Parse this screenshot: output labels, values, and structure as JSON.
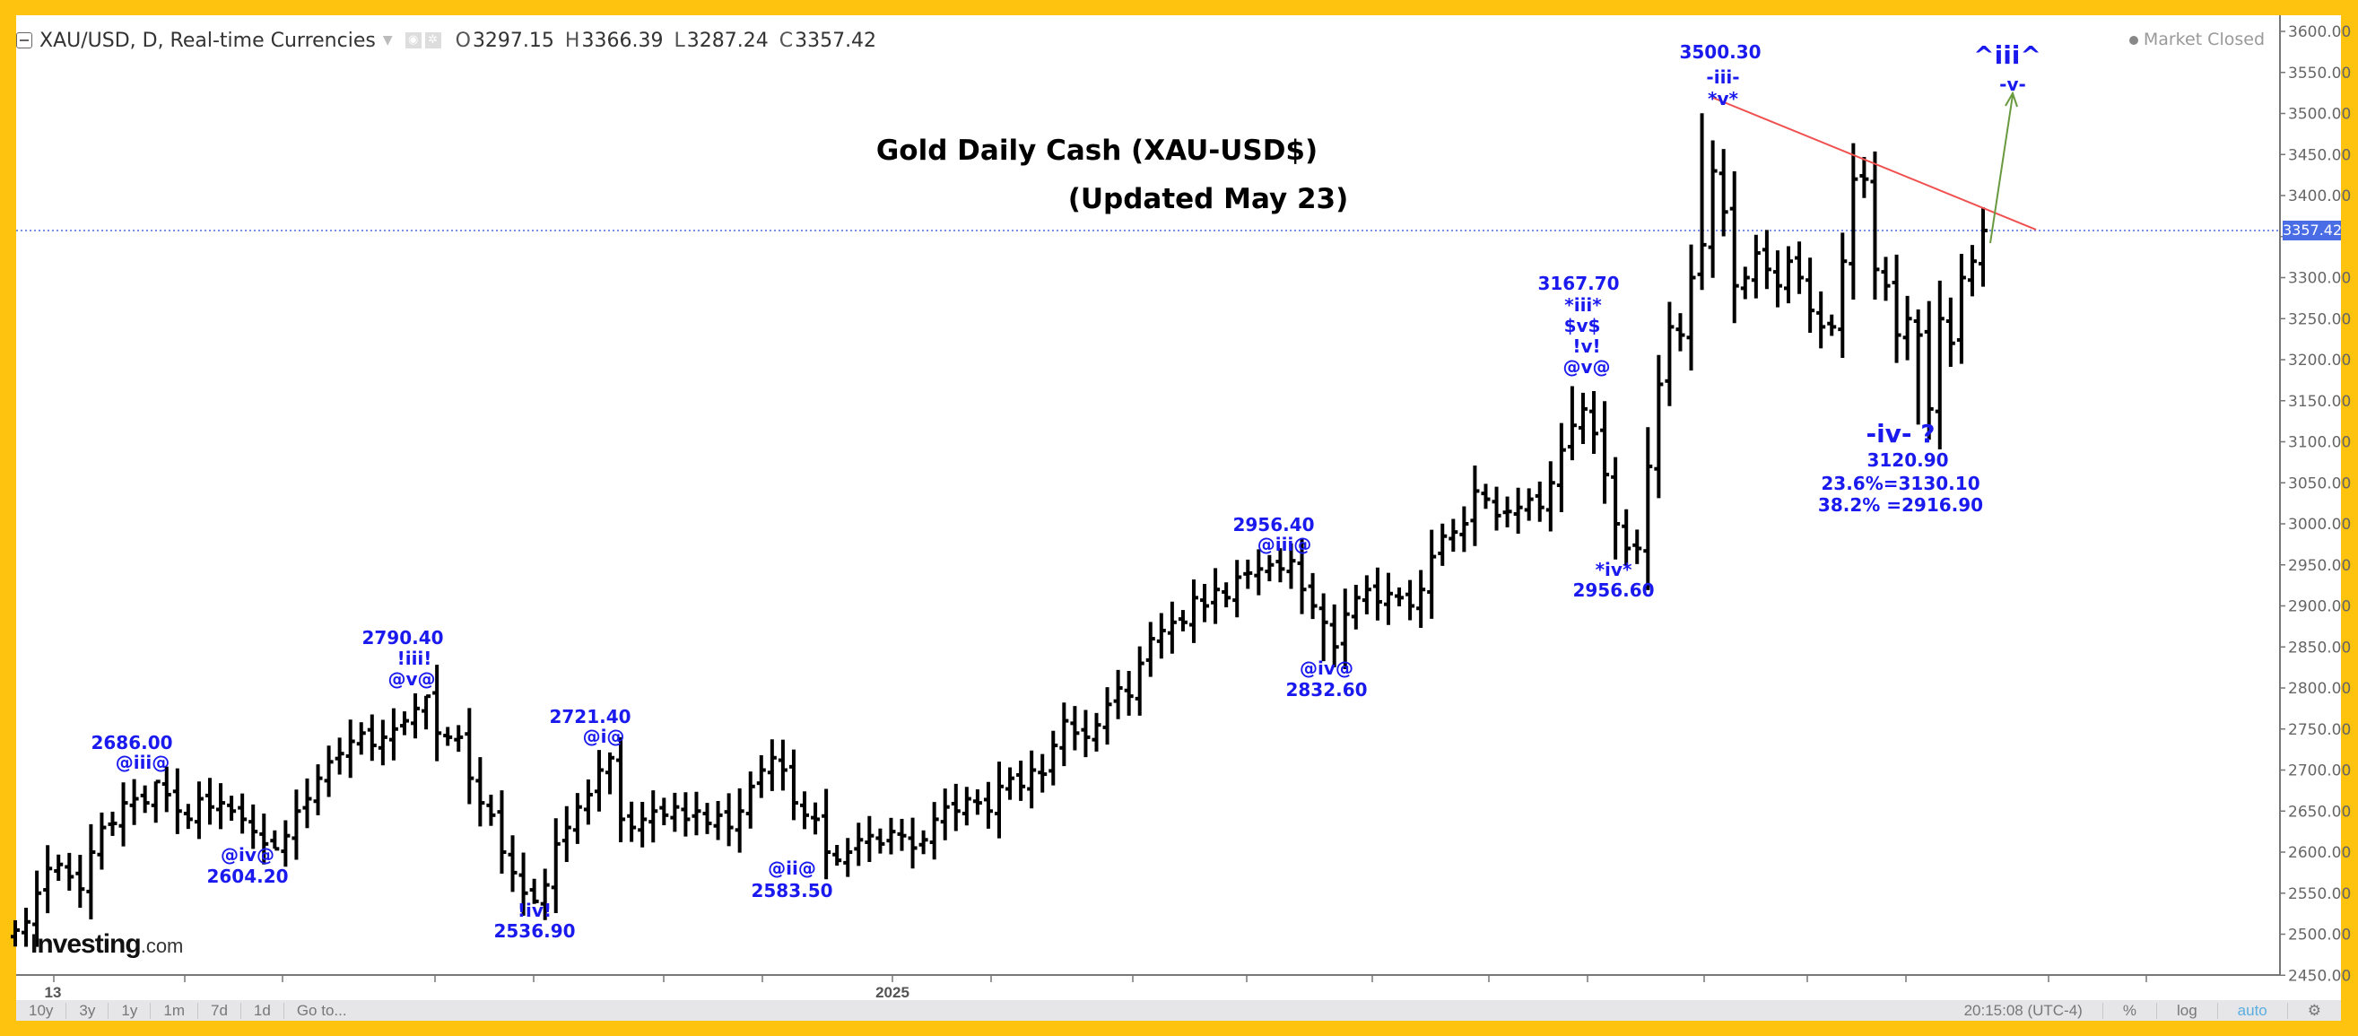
{
  "header": {
    "symbol": "XAU/USD, D, Real-time Currencies",
    "open_label": "O",
    "open": "3297.15",
    "high_label": "H",
    "high": "3366.39",
    "low_label": "L",
    "low": "3287.24",
    "close_label": "C",
    "close": "3357.42"
  },
  "market_status": "Market Closed",
  "logo": {
    "main": "Investing",
    "suffix": ".com"
  },
  "toolbar": {
    "ranges": [
      "10y",
      "3y",
      "1y",
      "1m",
      "7d",
      "1d",
      "Go to..."
    ],
    "time": "20:15:08 (UTC-4)",
    "percent": "%",
    "log": "log",
    "auto": "auto"
  },
  "colors": {
    "bars": "#000000",
    "annotation": "#1a1aee",
    "trendline": "#f05050",
    "arrow": "#6a9a40",
    "last_price": "#4a6de5",
    "border": "#fec30f"
  },
  "chart_data": {
    "type": "ohlc",
    "title": "Gold Daily Cash (XAU-USD$)",
    "subtitle": "(Updated May 23)",
    "ylim": [
      2450,
      3600
    ],
    "ytick_step": 50,
    "x_tick_labels": [
      "13",
      "2025"
    ],
    "last_price": "3357.42",
    "closes": [
      2505,
      2515,
      2550,
      2580,
      2585,
      2570,
      2555,
      2600,
      2630,
      2635,
      2660,
      2665,
      2660,
      2686,
      2670,
      2650,
      2640,
      2665,
      2655,
      2660,
      2650,
      2640,
      2625,
      2610,
      2604,
      2620,
      2650,
      2665,
      2690,
      2710,
      2720,
      2735,
      2745,
      2730,
      2740,
      2750,
      2760,
      2775,
      2790,
      2745,
      2740,
      2740,
      2690,
      2660,
      2645,
      2600,
      2575,
      2550,
      2540,
      2560,
      2610,
      2630,
      2655,
      2670,
      2700,
      2715,
      2640,
      2630,
      2640,
      2650,
      2645,
      2655,
      2640,
      2650,
      2635,
      2645,
      2630,
      2650,
      2680,
      2700,
      2715,
      2700,
      2660,
      2645,
      2640,
      2600,
      2590,
      2600,
      2615,
      2620,
      2610,
      2625,
      2620,
      2605,
      2615,
      2640,
      2655,
      2650,
      2665,
      2660,
      2650,
      2680,
      2690,
      2680,
      2700,
      2695,
      2730,
      2760,
      2745,
      2740,
      2755,
      2780,
      2800,
      2790,
      2830,
      2860,
      2870,
      2880,
      2880,
      2910,
      2900,
      2920,
      2910,
      2935,
      2940,
      2945,
      2950,
      2945,
      2955,
      2920,
      2900,
      2880,
      2850,
      2890,
      2910,
      2920,
      2905,
      2915,
      2910,
      2900,
      2920,
      2960,
      2985,
      2990,
      3000,
      3040,
      3030,
      3010,
      3015,
      3020,
      3030,
      3020,
      3050,
      3090,
      3120,
      3140,
      3110,
      3060,
      3000,
      2970,
      2970,
      3070,
      3170,
      3240,
      3230,
      3300,
      3340,
      3430,
      3380,
      3290,
      3300,
      3330,
      3310,
      3290,
      3320,
      3300,
      3260,
      3240,
      3240,
      3320,
      3420,
      3420,
      3310,
      3290,
      3230,
      3250,
      3230,
      3140,
      3250,
      3220,
      3300,
      3320,
      3357.42
    ],
    "labeled_extremes": [
      {
        "price": 2686.0,
        "wave": "@iii@"
      },
      {
        "price": 2604.2,
        "wave": "@iv@"
      },
      {
        "price": 2790.4,
        "wave": "!iii! @v@"
      },
      {
        "price": 2536.9,
        "wave": "!iv!"
      },
      {
        "price": 2721.4,
        "wave": "@i@"
      },
      {
        "price": 2583.5,
        "wave": "@ii@"
      },
      {
        "price": 2956.4,
        "wave": "@iii@"
      },
      {
        "price": 2832.6,
        "wave": "@iv@"
      },
      {
        "price": 3167.7,
        "wave": "*iii* $v$ !v! @v@"
      },
      {
        "price": 2956.6,
        "wave": "*iv*"
      },
      {
        "price": 3500.3,
        "wave": "-iii- *v*"
      },
      {
        "price": 3120.9,
        "wave": "-iv- ?"
      }
    ]
  },
  "annotations": {
    "a1_price": "2686.00",
    "a1_wave": "@iii@",
    "a2_wave": "@iv@",
    "a2_price": "2604.20",
    "a3_price": "2790.40",
    "a3_wave1": "!iii!",
    "a3_wave2": "@v@",
    "a4_price": "2721.40",
    "a4_wave": "@i@",
    "a5_wave": "!iv!",
    "a5_price": "2536.90",
    "a6_wave": "@ii@",
    "a6_price": "2583.50",
    "a7_price": "2956.40",
    "a7_wave": "@iii@",
    "a8_wave": "@iv@",
    "a8_price": "2832.60",
    "a9_price": "3167.70",
    "a9_w1": "*iii*",
    "a9_w2": "$v$",
    "a9_w3": "!v!",
    "a9_w4": "@v@",
    "a10_wave": "*iv*",
    "a10_price": "2956.60",
    "a11_price": "3500.30",
    "a11_w1": "-iii-",
    "a11_w2": "*v*",
    "a12_w1": "^iii^",
    "a12_w2": "-v-",
    "a13_wave": "-iv- ?",
    "a13_price": "3120.90",
    "fib1": "23.6%=3130.10",
    "fib2": "38.2% =2916.90"
  }
}
